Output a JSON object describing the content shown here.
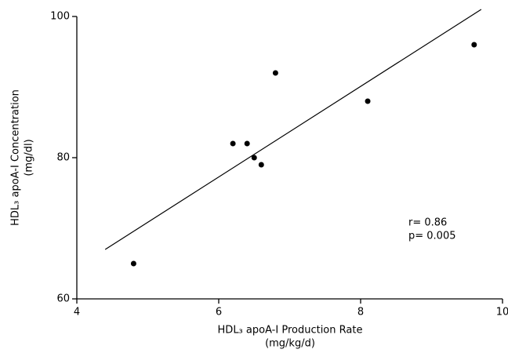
{
  "chart_data": {
    "type": "scatter",
    "x_label": [
      "HDL₃ apoA-I Production Rate",
      "(mg/kg/d)"
    ],
    "y_label": [
      "HDL₃ apoA-I Concentration",
      "(mg/dl)"
    ],
    "annotations": [
      "r= 0.86",
      "p= 0.005"
    ],
    "x": [
      4.8,
      6.2,
      6.4,
      6.5,
      6.6,
      6.8,
      8.1,
      9.6
    ],
    "values": [
      65,
      82,
      82,
      80,
      79,
      92,
      88,
      96
    ],
    "color": "#000000",
    "trendline": {
      "x": [
        4.4,
        9.7
      ],
      "y": [
        67,
        101
      ]
    },
    "xlim": [
      4,
      10
    ],
    "xticks": [
      4,
      6,
      8,
      10
    ],
    "ylim": [
      60,
      100
    ],
    "yticks": [
      60,
      80,
      100
    ],
    "grid": false
  }
}
